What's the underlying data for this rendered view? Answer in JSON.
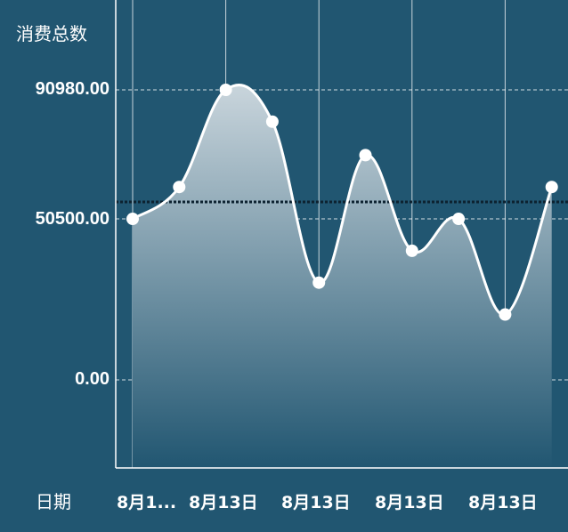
{
  "chart_data": {
    "type": "area",
    "ylabel": "消费总数",
    "xlabel": "日期",
    "yticks": [
      {
        "label": "90980.00",
        "value": 90980
      },
      {
        "label": "50500.00",
        "value": 50500
      },
      {
        "label": "0.00",
        "value": 0
      }
    ],
    "xtick_labels": [
      "8月1...",
      "8月13日",
      "8月13日",
      "8月13日",
      "8月13日"
    ],
    "values": [
      50500,
      60500,
      90980,
      81000,
      30500,
      70500,
      40500,
      50500,
      20500,
      60500
    ],
    "ylim": [
      -25000,
      118000
    ],
    "reference_line": 55800,
    "grid": true,
    "colors": {
      "background": "#215671",
      "line": "#ffffff",
      "area_top": "#c9d5dc",
      "area_bottom": "#215671",
      "grid": "#ffffff",
      "reference": "#0d2230"
    }
  }
}
